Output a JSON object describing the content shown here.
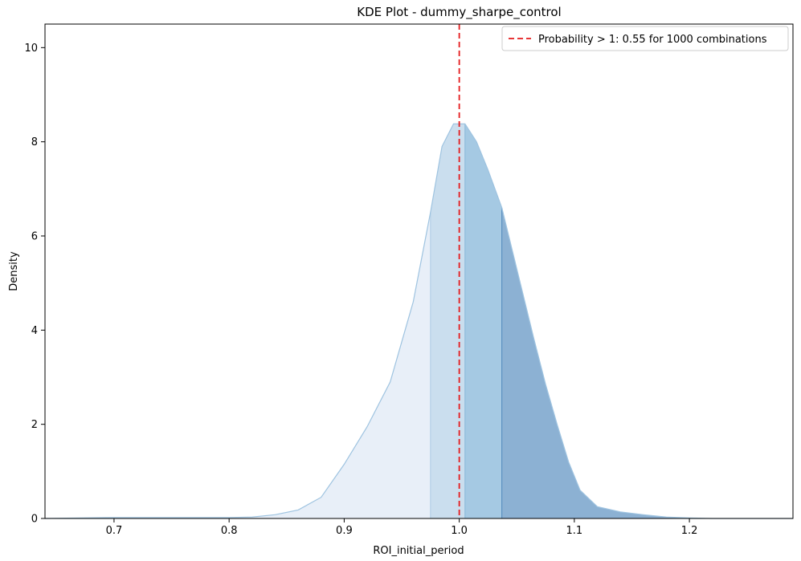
{
  "chart_data": {
    "type": "area",
    "title": "KDE Plot - dummy_sharpe_control",
    "xlabel": "ROI_initial_period",
    "ylabel": "Density",
    "xlim": [
      0.64,
      1.29
    ],
    "ylim": [
      0,
      10.5
    ],
    "xticks": [
      "0.7",
      "0.8",
      "0.9",
      "1.0",
      "1.1",
      "1.2"
    ],
    "yticks": [
      "0",
      "2",
      "4",
      "6",
      "8",
      "10"
    ],
    "grid": false,
    "legend_position": "top-right",
    "legend": [
      {
        "label": "Probability > 1: 0.55 for 1000 combinations",
        "style": "dashed",
        "color": "#e41a1c"
      }
    ],
    "threshold_x": 1.0,
    "kde": {
      "x": [
        0.64,
        0.7,
        0.76,
        0.8,
        0.82,
        0.84,
        0.86,
        0.88,
        0.9,
        0.92,
        0.94,
        0.96,
        0.975,
        0.985,
        0.995,
        1.005,
        1.015,
        1.025,
        1.037,
        1.045,
        1.055,
        1.065,
        1.075,
        1.085,
        1.095,
        1.105,
        1.12,
        1.14,
        1.16,
        1.18,
        1.2,
        1.22,
        1.29
      ],
      "density": [
        0.0,
        0.02,
        0.02,
        0.02,
        0.03,
        0.08,
        0.18,
        0.45,
        1.15,
        1.95,
        2.9,
        4.6,
        6.5,
        7.9,
        8.38,
        8.38,
        8.0,
        7.4,
        6.6,
        5.8,
        4.8,
        3.8,
        2.85,
        2.0,
        1.2,
        0.6,
        0.25,
        0.14,
        0.08,
        0.03,
        0.01,
        0.0,
        0.0
      ]
    },
    "bands": [
      {
        "from": 0.64,
        "to": 0.975,
        "color": "#dce7f5",
        "opacity": 0.65
      },
      {
        "from": 0.975,
        "to": 1.005,
        "color": "#b4d0e7",
        "opacity": 0.7
      },
      {
        "from": 1.005,
        "to": 1.037,
        "color": "#8fbcdc",
        "opacity": 0.8
      },
      {
        "from": 1.037,
        "to": 1.29,
        "color": "#5b90c0",
        "opacity": 0.7
      }
    ]
  }
}
